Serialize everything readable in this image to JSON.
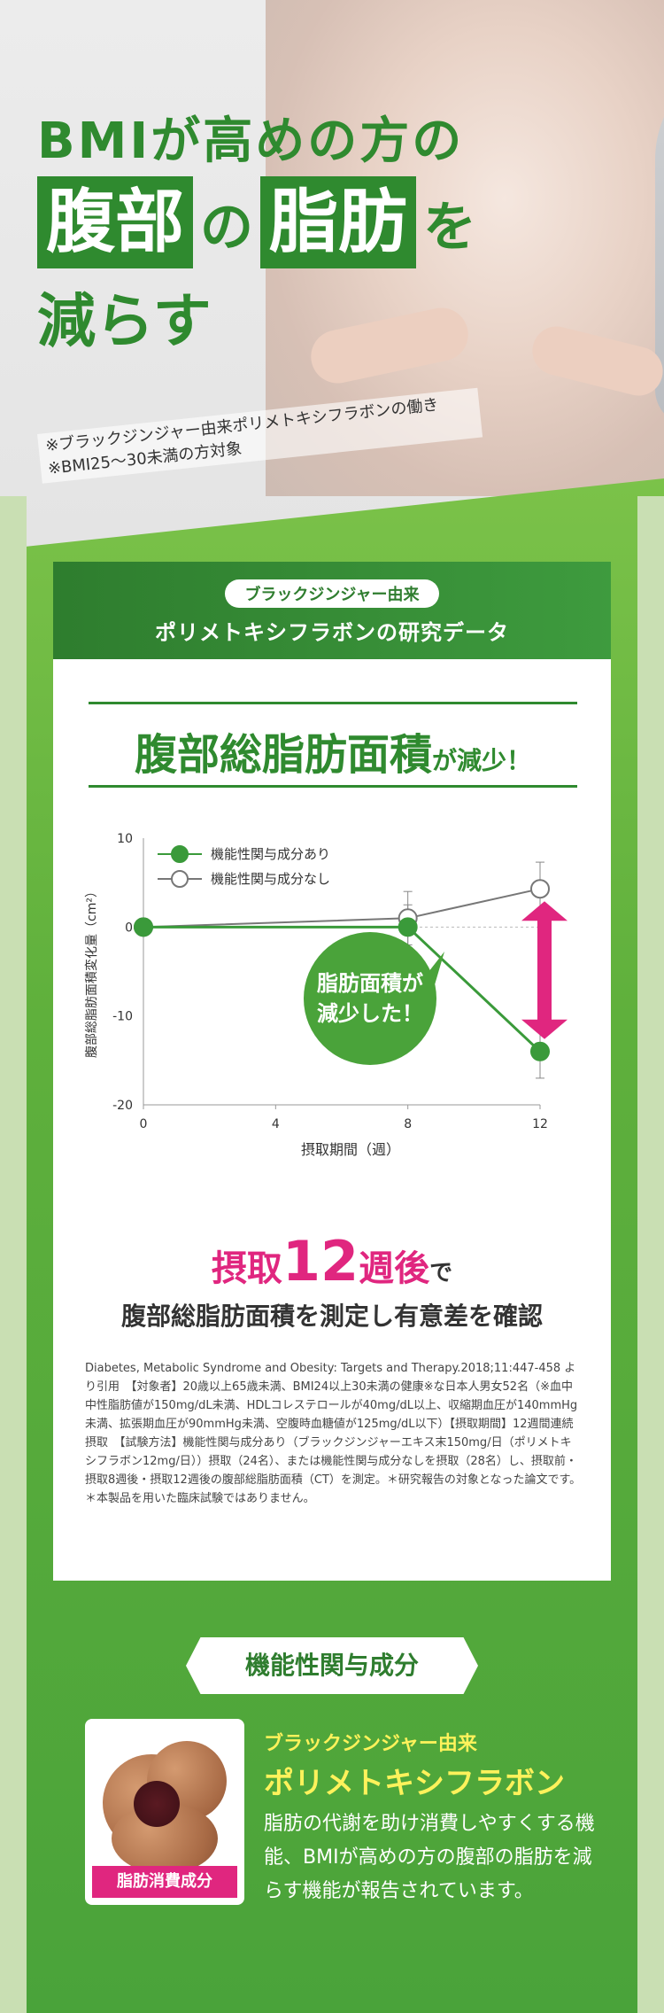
{
  "hero": {
    "line1": "BMIが高めの方の",
    "word_a": "腹部",
    "joint": "の",
    "word_b": "脂肪",
    "joint2": "を",
    "line3": "減らす",
    "note1": "※ブラックジンジャー由来ポリメトキシフラボンの働き",
    "note2": "※BMI25〜30未満の方対象"
  },
  "card": {
    "pill": "ブラックジンジャー由来",
    "title": "ポリメトキシフラボンの研究データ",
    "result_big": "腹部総脂肪面積",
    "result_small": "が減少！"
  },
  "chart_data": {
    "type": "line",
    "x": [
      0,
      4,
      8,
      12
    ],
    "xlabel": "摂取期間（週）",
    "ylabel": "腹部総脂肪面積変化量（cm²）",
    "ylim": [
      -20,
      10
    ],
    "yticks": [
      10,
      0,
      -10,
      -20
    ],
    "xticks": [
      0,
      4,
      8,
      12
    ],
    "series": [
      {
        "name": "機能性関与成分あり",
        "x": [
          0,
          8,
          12
        ],
        "values": [
          0,
          0,
          -14
        ],
        "color": "#3a9a3a",
        "filled": true
      },
      {
        "name": "機能性関与成分なし",
        "x": [
          0,
          8,
          12
        ],
        "values": [
          0,
          1,
          4.3
        ],
        "color": "#777777",
        "filled": false
      }
    ],
    "legend": "top-left"
  },
  "bubble": {
    "line1": "脂肪面積が",
    "line2": "減少した！"
  },
  "caption": {
    "pre": "摂取",
    "num": "12",
    "unit": "週後",
    "post": "で",
    "line2": "腹部総脂肪面積を測定し有意差を確認"
  },
  "reference": "Diabetes, Metabolic Syndrome and Obesity: Targets and Therapy.2018;11:447-458 より引用　【対象者】20歳以上65歳未満、BMI24以上30未満の健康※な日本人男女52名（※血中中性脂肪値が150mg/dL未満、HDLコレステロールが40mg/dL以上、収縮期血圧が140mmHg未満、拡張期血圧が90mmHg未満、空腹時血糖値が125mg/dL以下）【摂取期間】12週間連続摂取　【試験方法】機能性関与成分あり（ブラックジンジャーエキス末150mg/日（ポリメトキシフラボン12mg/日））摂取（24名）、または機能性関与成分なしを摂取（28名）し、摂取前・摂取8週後・摂取12週後の腹部総脂肪面積（CT）を測定。＊研究報告の対象となった論文です。＊本製品を用いた臨床試験ではありません。",
  "ingredient": {
    "tag": "機能性関与成分",
    "photo_label": "脂肪消費成分",
    "sub": "ブラックジンジャー由来",
    "name": "ポリメトキシフラボン",
    "desc": "脂肪の代謝を助け消費しやすくする機能、BMIが高めの方の腹部の脂肪を減らす機能が報告されています。"
  }
}
